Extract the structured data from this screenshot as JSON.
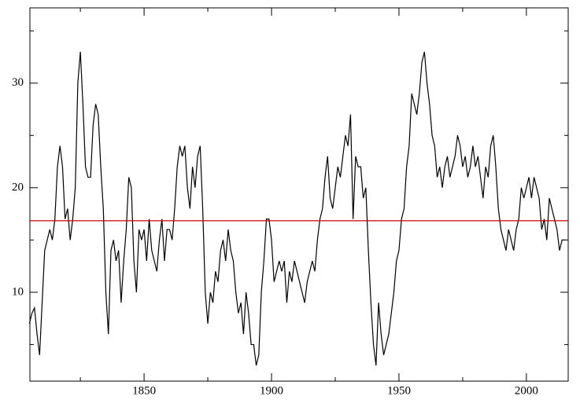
{
  "chart_data": {
    "type": "line",
    "x": [
      1805,
      1806,
      1807,
      1808,
      1809,
      1810,
      1811,
      1812,
      1813,
      1814,
      1815,
      1816,
      1817,
      1818,
      1819,
      1820,
      1821,
      1822,
      1823,
      1824,
      1825,
      1826,
      1827,
      1828,
      1829,
      1830,
      1831,
      1832,
      1833,
      1834,
      1835,
      1836,
      1837,
      1838,
      1839,
      1840,
      1841,
      1842,
      1843,
      1844,
      1845,
      1846,
      1847,
      1848,
      1849,
      1850,
      1851,
      1852,
      1853,
      1854,
      1855,
      1856,
      1857,
      1858,
      1859,
      1860,
      1861,
      1862,
      1863,
      1864,
      1865,
      1866,
      1867,
      1868,
      1869,
      1870,
      1871,
      1872,
      1873,
      1874,
      1875,
      1876,
      1877,
      1878,
      1879,
      1880,
      1881,
      1882,
      1883,
      1884,
      1885,
      1886,
      1887,
      1888,
      1889,
      1890,
      1891,
      1892,
      1893,
      1894,
      1895,
      1896,
      1897,
      1898,
      1899,
      1900,
      1901,
      1902,
      1903,
      1904,
      1905,
      1906,
      1907,
      1908,
      1909,
      1910,
      1911,
      1912,
      1913,
      1914,
      1915,
      1916,
      1917,
      1918,
      1919,
      1920,
      1921,
      1922,
      1923,
      1924,
      1925,
      1926,
      1927,
      1928,
      1929,
      1930,
      1931,
      1932,
      1933,
      1934,
      1935,
      1936,
      1937,
      1938,
      1939,
      1940,
      1941,
      1942,
      1943,
      1944,
      1945,
      1946,
      1947,
      1948,
      1949,
      1950,
      1951,
      1952,
      1953,
      1954,
      1955,
      1956,
      1957,
      1958,
      1959,
      1960,
      1961,
      1962,
      1963,
      1964,
      1965,
      1966,
      1967,
      1968,
      1969,
      1970,
      1971,
      1972,
      1973,
      1974,
      1975,
      1976,
      1977,
      1978,
      1979,
      1980,
      1981,
      1982,
      1983,
      1984,
      1985,
      1986,
      1987,
      1988,
      1989,
      1990,
      1991,
      1992,
      1993,
      1994,
      1995,
      1996,
      1997,
      1998,
      1999,
      2000,
      2001,
      2002,
      2003,
      2004,
      2005,
      2006,
      2007,
      2008,
      2009,
      2010,
      2011,
      2012,
      2013,
      2014,
      2015
    ],
    "series": [
      {
        "color": "#000000",
        "values": [
          7,
          8,
          8.5,
          6,
          4,
          9,
          14,
          15,
          16,
          15,
          17,
          22,
          24,
          22,
          17,
          18,
          15,
          17,
          20,
          30,
          33,
          28,
          22,
          21,
          21,
          26,
          28,
          27,
          22,
          18,
          10,
          6,
          14,
          15,
          13,
          14,
          9,
          13,
          16,
          21,
          20,
          13,
          10,
          16,
          15,
          16,
          13,
          17,
          14,
          13,
          12,
          15,
          17,
          13,
          16,
          16,
          15,
          18,
          22,
          24,
          23,
          24,
          20,
          18,
          22,
          20,
          23,
          24,
          18,
          10,
          7,
          10,
          9,
          12,
          11,
          14,
          15,
          13,
          16,
          14,
          13,
          10,
          8,
          9,
          6,
          10,
          8,
          5,
          5,
          3,
          4,
          10,
          13,
          17,
          17,
          15,
          11,
          12,
          13,
          12,
          13,
          9,
          12,
          11,
          13,
          12,
          11,
          10,
          9,
          11,
          12,
          13,
          12,
          15,
          17,
          18,
          21,
          23,
          19,
          18,
          20,
          22,
          21,
          23,
          25,
          24,
          27,
          17,
          23,
          22,
          22,
          19,
          20,
          14,
          9,
          5,
          3,
          9,
          6,
          4,
          5,
          6,
          8,
          10,
          13,
          14,
          17,
          18,
          22,
          24,
          29,
          28,
          27,
          29,
          32,
          33,
          30,
          28,
          25,
          24,
          21,
          22,
          20,
          22,
          23,
          21,
          22,
          23,
          25,
          24,
          22,
          23,
          21,
          22,
          24,
          22,
          23,
          21,
          19,
          22,
          21,
          24,
          25,
          22,
          18,
          16,
          15,
          14,
          16,
          15,
          14,
          16,
          17,
          20,
          19,
          20,
          21,
          19,
          21,
          20,
          19,
          16,
          17,
          15,
          19,
          18,
          17,
          16,
          14,
          15,
          15
        ]
      }
    ],
    "hline": {
      "value": 16.84,
      "color": "#cc0000"
    },
    "xlim": [
      1805.2,
      2016.4
    ],
    "xticks": [
      1850,
      1900,
      1950,
      2000
    ],
    "xminorticks": [
      1825,
      1875,
      1925,
      1975
    ],
    "ylim": [
      1.5,
      37.2
    ],
    "yticks": [
      10,
      20,
      30
    ],
    "yminorticks": [
      5,
      15,
      25,
      35
    ]
  }
}
